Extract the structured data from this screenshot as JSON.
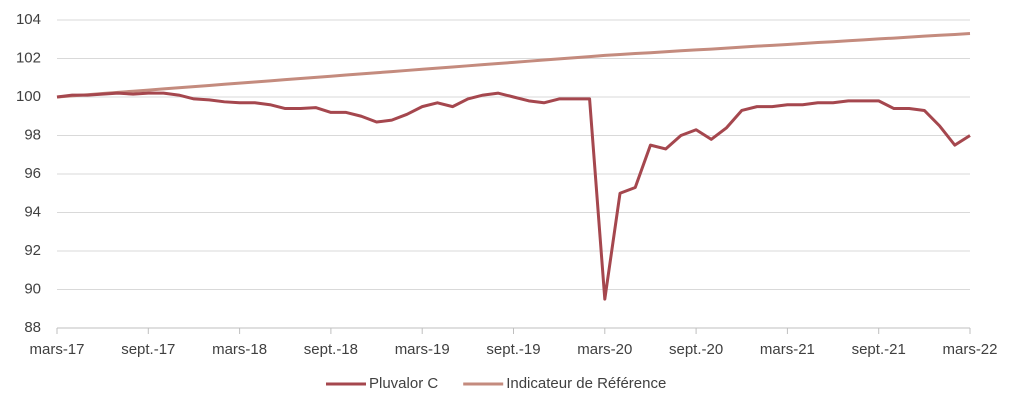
{
  "chart_data": {
    "type": "line",
    "categories": [
      "mars-17",
      null,
      null,
      null,
      null,
      null,
      "sept.-17",
      null,
      null,
      null,
      null,
      null,
      "mars-18",
      null,
      null,
      null,
      null,
      null,
      "sept.-18",
      null,
      null,
      null,
      null,
      null,
      "mars-19",
      null,
      null,
      null,
      null,
      null,
      "sept.-19",
      null,
      null,
      null,
      null,
      null,
      "mars-20",
      null,
      null,
      null,
      null,
      null,
      "sept.-20",
      null,
      null,
      null,
      null,
      null,
      "mars-21",
      null,
      null,
      null,
      null,
      null,
      "sept.-21",
      null,
      null,
      null,
      null,
      null,
      "mars-22"
    ],
    "series": [
      {
        "name": "Pluvalor C",
        "color": "#a5474e",
        "values": [
          100.0,
          100.1,
          100.1,
          100.15,
          100.2,
          100.15,
          100.2,
          100.2,
          100.1,
          99.9,
          99.85,
          99.75,
          99.7,
          99.7,
          99.6,
          99.4,
          99.4,
          99.45,
          99.2,
          99.2,
          99.0,
          98.7,
          98.8,
          99.1,
          99.5,
          99.7,
          99.5,
          99.9,
          100.1,
          100.2,
          100.0,
          99.8,
          99.7,
          99.9,
          99.9,
          99.9,
          89.5,
          95.0,
          95.3,
          97.5,
          97.3,
          98.0,
          98.3,
          97.8,
          98.4,
          99.3,
          99.5,
          99.5,
          99.6,
          99.6,
          99.7,
          99.7,
          99.8,
          99.8,
          99.8,
          99.4,
          99.4,
          99.3,
          98.5,
          97.5,
          98.0
        ]
      },
      {
        "name": "Indicateur de Référence",
        "color": "#c48b7e",
        "values": [
          100.0,
          100.06,
          100.12,
          100.18,
          100.24,
          100.3,
          100.36,
          100.42,
          100.48,
          100.54,
          100.6,
          100.66,
          100.72,
          100.78,
          100.84,
          100.9,
          100.96,
          101.02,
          101.08,
          101.14,
          101.2,
          101.26,
          101.32,
          101.38,
          101.44,
          101.5,
          101.56,
          101.62,
          101.68,
          101.74,
          101.8,
          101.86,
          101.92,
          101.98,
          102.04,
          102.1,
          102.16,
          102.21,
          102.26,
          102.3,
          102.35,
          102.4,
          102.45,
          102.49,
          102.54,
          102.59,
          102.64,
          102.68,
          102.73,
          102.78,
          102.83,
          102.87,
          102.92,
          102.97,
          103.02,
          103.06,
          103.11,
          103.16,
          103.21,
          103.25,
          103.3
        ]
      }
    ],
    "ylim": [
      88,
      104
    ],
    "yticks": [
      88,
      90,
      92,
      94,
      96,
      98,
      100,
      102,
      104
    ],
    "grid": true,
    "legend": "bottom"
  }
}
